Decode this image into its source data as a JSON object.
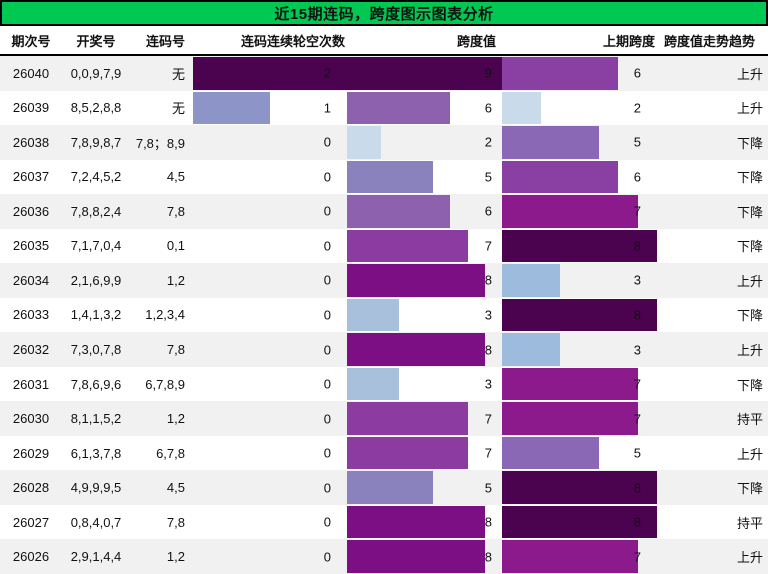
{
  "title": "近15期连码，跨度图示图表分析",
  "theme": {
    "title_bg": "#00c853",
    "stripe_bg": "#f1f1f1",
    "border": "#000000"
  },
  "chart_data": {
    "type": "table",
    "title": "近15期连码，跨度图示图表分析",
    "columns": [
      "期次号",
      "开奖号",
      "连码号",
      "连码连续轮空次数",
      "跨度值",
      "上期跨度",
      "跨度值走势趋势"
    ],
    "bar_maxes": {
      "skip": 2,
      "span": 9,
      "prev": 8
    },
    "bar_colors": {
      "skip": {
        "1": "#8c94c8",
        "2": "#4b0350"
      },
      "span": {
        "2": "#c9daea",
        "3": "#a9c0dd",
        "5": "#8a82bd",
        "6": "#8d61ad",
        "7": "#8c3ba0",
        "8": "#7d0f85",
        "9": "#4b0350"
      },
      "prev": {
        "2": "#c9daea",
        "3": "#9dbbdc",
        "5": "#8a68b5",
        "6": "#8a3fa2",
        "7": "#8c1a8c",
        "8": "#4b0350"
      }
    },
    "rows": [
      {
        "period": "26040",
        "draw": "0,0,9,7,9",
        "lianma": "无",
        "skip": 2,
        "span": 9,
        "prev": 6,
        "trend": "上升"
      },
      {
        "period": "26039",
        "draw": "8,5,2,8,8",
        "lianma": "无",
        "skip": 1,
        "span": 6,
        "prev": 2,
        "trend": "上升"
      },
      {
        "period": "26038",
        "draw": "7,8,9,8,7",
        "lianma": "7,8；8,9",
        "skip": 0,
        "span": 2,
        "prev": 5,
        "trend": "下降"
      },
      {
        "period": "26037",
        "draw": "7,2,4,5,2",
        "lianma": "4,5",
        "skip": 0,
        "span": 5,
        "prev": 6,
        "trend": "下降"
      },
      {
        "period": "26036",
        "draw": "7,8,8,2,4",
        "lianma": "7,8",
        "skip": 0,
        "span": 6,
        "prev": 7,
        "trend": "下降"
      },
      {
        "period": "26035",
        "draw": "7,1,7,0,4",
        "lianma": "0,1",
        "skip": 0,
        "span": 7,
        "prev": 8,
        "trend": "下降"
      },
      {
        "period": "26034",
        "draw": "2,1,6,9,9",
        "lianma": "1,2",
        "skip": 0,
        "span": 8,
        "prev": 3,
        "trend": "上升"
      },
      {
        "period": "26033",
        "draw": "1,4,1,3,2",
        "lianma": "1,2,3,4",
        "skip": 0,
        "span": 3,
        "prev": 8,
        "trend": "下降"
      },
      {
        "period": "26032",
        "draw": "7,3,0,7,8",
        "lianma": "7,8",
        "skip": 0,
        "span": 8,
        "prev": 3,
        "trend": "上升"
      },
      {
        "period": "26031",
        "draw": "7,8,6,9,6",
        "lianma": "6,7,8,9",
        "skip": 0,
        "span": 3,
        "prev": 7,
        "trend": "下降"
      },
      {
        "period": "26030",
        "draw": "8,1,1,5,2",
        "lianma": "1,2",
        "skip": 0,
        "span": 7,
        "prev": 7,
        "trend": "持平"
      },
      {
        "period": "26029",
        "draw": "6,1,3,7,8",
        "lianma": "6,7,8",
        "skip": 0,
        "span": 7,
        "prev": 5,
        "trend": "上升"
      },
      {
        "period": "26028",
        "draw": "4,9,9,9,5",
        "lianma": "4,5",
        "skip": 0,
        "span": 5,
        "prev": 8,
        "trend": "下降"
      },
      {
        "period": "26027",
        "draw": "0,8,4,0,7",
        "lianma": "7,8",
        "skip": 0,
        "span": 8,
        "prev": 8,
        "trend": "持平"
      },
      {
        "period": "26026",
        "draw": "2,9,1,4,4",
        "lianma": "1,2",
        "skip": 0,
        "span": 8,
        "prev": 7,
        "trend": "上升"
      }
    ]
  }
}
